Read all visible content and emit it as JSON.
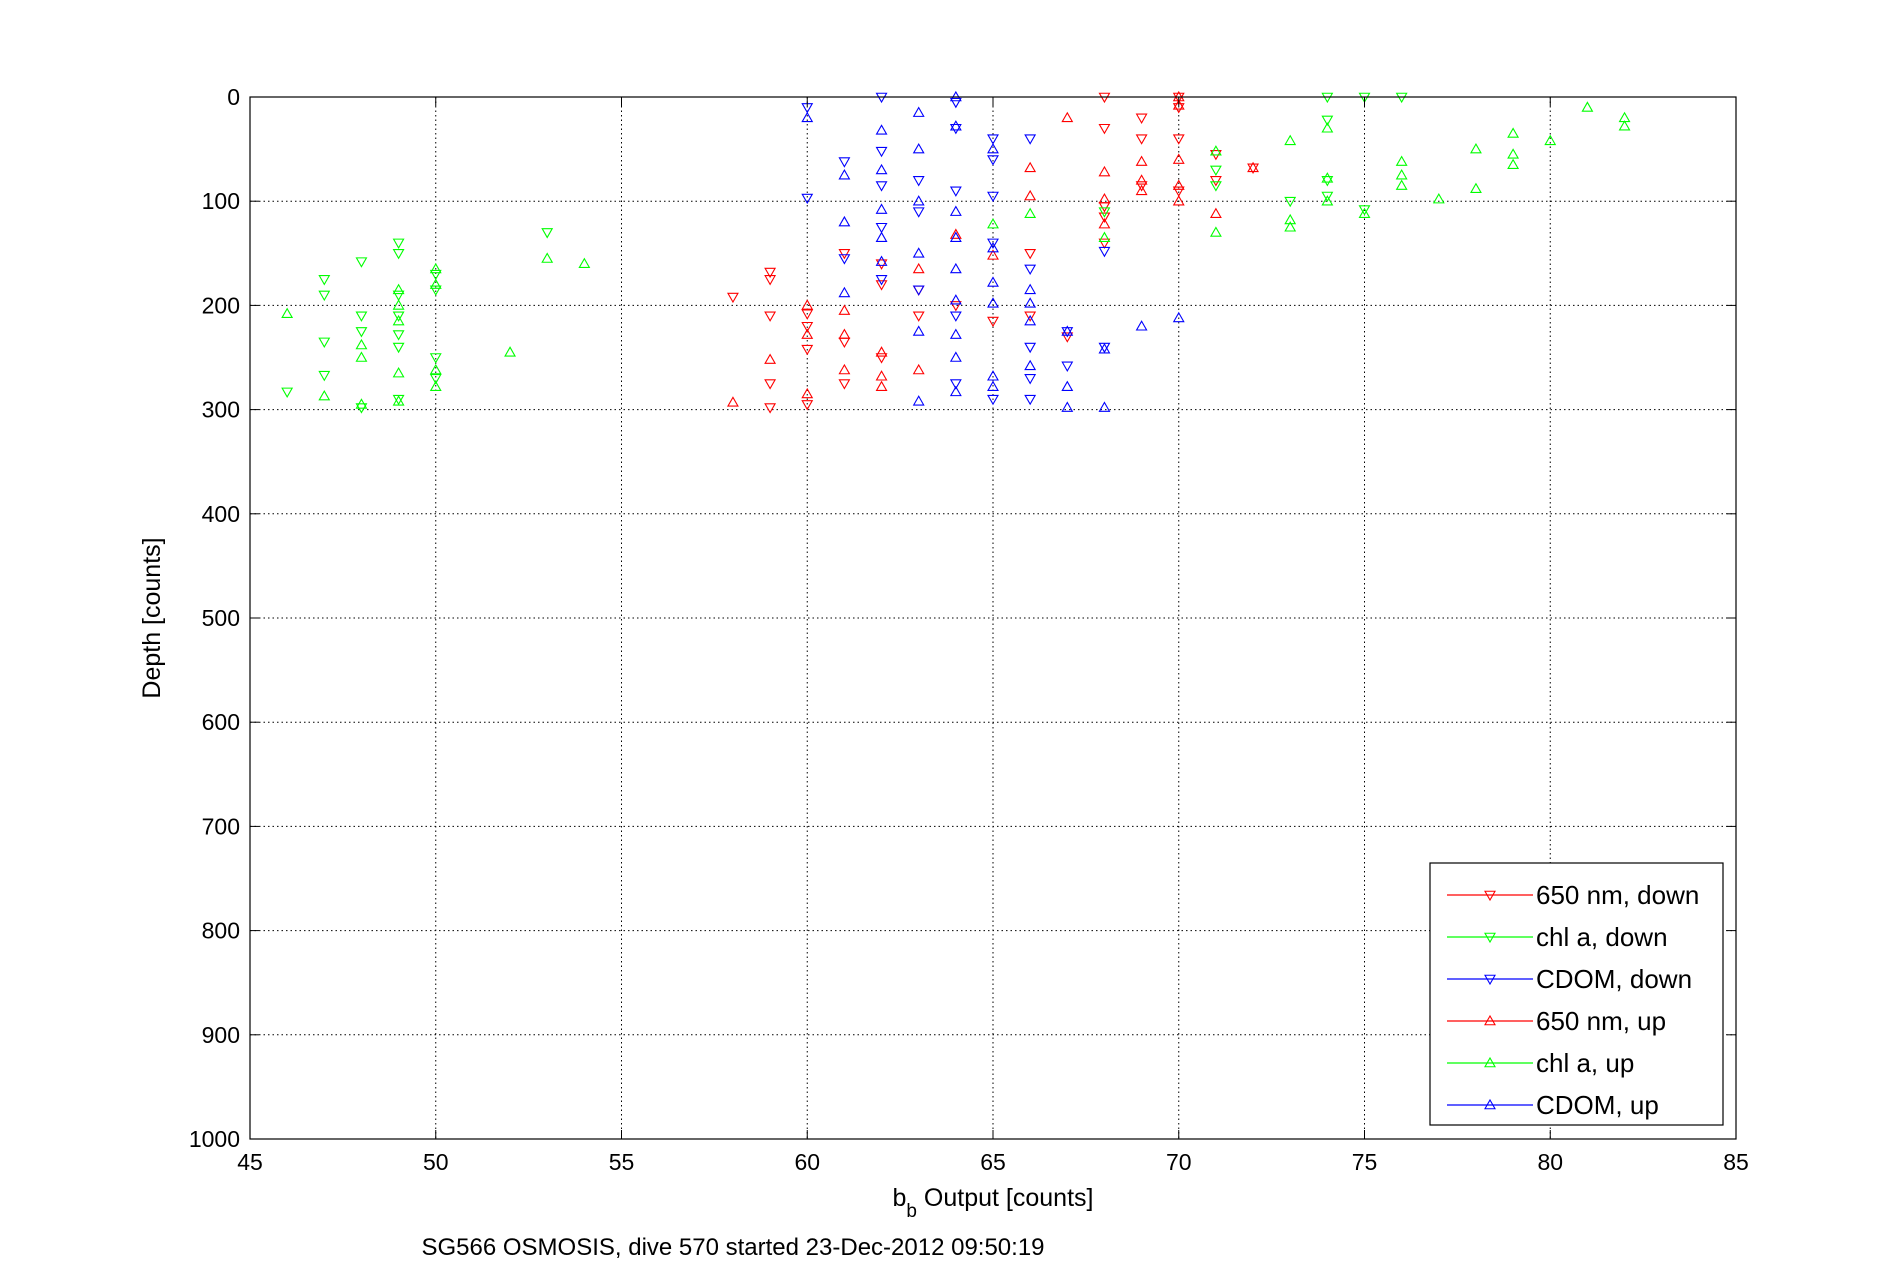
{
  "chart_data": {
    "type": "scatter",
    "xlabel_main": "b",
    "xlabel_sub": "b",
    "xlabel_rest": " Output [counts]",
    "ylabel": "Depth [counts]",
    "caption": "SG566 OSMOSIS, dive 570 started 23-Dec-2012 09:50:19",
    "xlim": [
      45,
      85
    ],
    "ylim": [
      0,
      1000
    ],
    "y_reversed": true,
    "grid": true,
    "legend_position": "bottom-right",
    "x_ticks": [
      "45",
      "50",
      "55",
      "60",
      "65",
      "70",
      "75",
      "80",
      "85"
    ],
    "y_ticks": [
      "0",
      "100",
      "200",
      "300",
      "400",
      "500",
      "600",
      "700",
      "800",
      "900",
      "1000"
    ],
    "colors": {
      "red": "#ff0000",
      "green": "#00ff00",
      "blue": "#0000ff"
    },
    "series": [
      {
        "name": "650 nm, down",
        "color": "#ff0000",
        "marker": "triangle-down",
        "points": [
          [
            58,
            192
          ],
          [
            59,
            168
          ],
          [
            59,
            175
          ],
          [
            59,
            210
          ],
          [
            59,
            275
          ],
          [
            59,
            298
          ],
          [
            60,
            208
          ],
          [
            60,
            220
          ],
          [
            60,
            242
          ],
          [
            60,
            295
          ],
          [
            61,
            150
          ],
          [
            61,
            235
          ],
          [
            61,
            275
          ],
          [
            62,
            160
          ],
          [
            62,
            180
          ],
          [
            62,
            250
          ],
          [
            63,
            185
          ],
          [
            63,
            210
          ],
          [
            64,
            200
          ],
          [
            65,
            215
          ],
          [
            66,
            150
          ],
          [
            66,
            210
          ],
          [
            67,
            230
          ],
          [
            68,
            0
          ],
          [
            68,
            30
          ],
          [
            68,
            105
          ],
          [
            68,
            115
          ],
          [
            68,
            140
          ],
          [
            69,
            20
          ],
          [
            69,
            40
          ],
          [
            69,
            85
          ],
          [
            70,
            0
          ],
          [
            70,
            10
          ],
          [
            70,
            40
          ],
          [
            70,
            90
          ],
          [
            71,
            55
          ],
          [
            71,
            80
          ],
          [
            72,
            68
          ]
        ]
      },
      {
        "name": "chl a, down",
        "color": "#00ff00",
        "marker": "triangle-down",
        "points": [
          [
            46,
            283
          ],
          [
            47,
            175
          ],
          [
            47,
            190
          ],
          [
            47,
            235
          ],
          [
            47,
            267
          ],
          [
            48,
            158
          ],
          [
            48,
            210
          ],
          [
            48,
            225
          ],
          [
            48,
            298
          ],
          [
            49,
            140
          ],
          [
            49,
            150
          ],
          [
            49,
            190
          ],
          [
            49,
            210
          ],
          [
            49,
            228
          ],
          [
            49,
            240
          ],
          [
            49,
            290
          ],
          [
            50,
            170
          ],
          [
            50,
            185
          ],
          [
            50,
            250
          ],
          [
            50,
            270
          ],
          [
            53,
            130
          ],
          [
            68,
            110
          ],
          [
            71,
            70
          ],
          [
            71,
            85
          ],
          [
            73,
            100
          ],
          [
            74,
            0
          ],
          [
            74,
            22
          ],
          [
            74,
            80
          ],
          [
            74,
            95
          ],
          [
            75,
            0
          ],
          [
            75,
            108
          ],
          [
            76,
            0
          ]
        ]
      },
      {
        "name": "CDOM, down",
        "color": "#0000ff",
        "marker": "triangle-down",
        "points": [
          [
            60,
            10
          ],
          [
            60,
            97
          ],
          [
            61,
            62
          ],
          [
            61,
            155
          ],
          [
            62,
            0
          ],
          [
            62,
            52
          ],
          [
            62,
            85
          ],
          [
            62,
            125
          ],
          [
            62,
            175
          ],
          [
            63,
            80
          ],
          [
            63,
            110
          ],
          [
            63,
            185
          ],
          [
            64,
            5
          ],
          [
            64,
            30
          ],
          [
            64,
            90
          ],
          [
            64,
            210
          ],
          [
            64,
            275
          ],
          [
            65,
            40
          ],
          [
            65,
            60
          ],
          [
            65,
            95
          ],
          [
            65,
            140
          ],
          [
            65,
            290
          ],
          [
            66,
            40
          ],
          [
            66,
            165
          ],
          [
            66,
            240
          ],
          [
            66,
            270
          ],
          [
            66,
            290
          ],
          [
            67,
            225
          ],
          [
            67,
            258
          ],
          [
            68,
            148
          ],
          [
            68,
            240
          ]
        ]
      },
      {
        "name": "650 nm, up",
        "color": "#ff0000",
        "marker": "triangle-up",
        "points": [
          [
            58,
            293
          ],
          [
            59,
            252
          ],
          [
            60,
            200
          ],
          [
            60,
            228
          ],
          [
            60,
            285
          ],
          [
            61,
            205
          ],
          [
            61,
            228
          ],
          [
            61,
            262
          ],
          [
            62,
            245
          ],
          [
            62,
            268
          ],
          [
            62,
            278
          ],
          [
            63,
            165
          ],
          [
            63,
            262
          ],
          [
            64,
            132
          ],
          [
            65,
            152
          ],
          [
            66,
            68
          ],
          [
            66,
            95
          ],
          [
            67,
            20
          ],
          [
            68,
            72
          ],
          [
            68,
            98
          ],
          [
            68,
            122
          ],
          [
            69,
            62
          ],
          [
            69,
            80
          ],
          [
            69,
            90
          ],
          [
            70,
            0
          ],
          [
            70,
            8
          ],
          [
            70,
            60
          ],
          [
            70,
            85
          ],
          [
            70,
            100
          ],
          [
            71,
            112
          ],
          [
            72,
            68
          ]
        ]
      },
      {
        "name": "chl a, up",
        "color": "#00ff00",
        "marker": "triangle-up",
        "points": [
          [
            46,
            208
          ],
          [
            47,
            287
          ],
          [
            48,
            295
          ],
          [
            48,
            238
          ],
          [
            48,
            250
          ],
          [
            49,
            185
          ],
          [
            49,
            200
          ],
          [
            49,
            215
          ],
          [
            49,
            265
          ],
          [
            49,
            292
          ],
          [
            50,
            165
          ],
          [
            50,
            180
          ],
          [
            50,
            262
          ],
          [
            50,
            278
          ],
          [
            52,
            245
          ],
          [
            53,
            155
          ],
          [
            54,
            160
          ],
          [
            65,
            122
          ],
          [
            66,
            112
          ],
          [
            68,
            135
          ],
          [
            71,
            52
          ],
          [
            71,
            130
          ],
          [
            73,
            42
          ],
          [
            73,
            118
          ],
          [
            73,
            125
          ],
          [
            74,
            30
          ],
          [
            74,
            78
          ],
          [
            74,
            100
          ],
          [
            75,
            112
          ],
          [
            76,
            62
          ],
          [
            76,
            75
          ],
          [
            76,
            85
          ],
          [
            77,
            98
          ],
          [
            78,
            50
          ],
          [
            78,
            88
          ],
          [
            79,
            35
          ],
          [
            79,
            55
          ],
          [
            79,
            65
          ],
          [
            80,
            42
          ],
          [
            81,
            10
          ],
          [
            82,
            20
          ],
          [
            82,
            28
          ]
        ]
      },
      {
        "name": "CDOM, up",
        "color": "#0000ff",
        "marker": "triangle-up",
        "points": [
          [
            60,
            20
          ],
          [
            61,
            75
          ],
          [
            61,
            120
          ],
          [
            61,
            188
          ],
          [
            62,
            32
          ],
          [
            62,
            70
          ],
          [
            62,
            108
          ],
          [
            62,
            135
          ],
          [
            62,
            158
          ],
          [
            63,
            15
          ],
          [
            63,
            50
          ],
          [
            63,
            100
          ],
          [
            63,
            150
          ],
          [
            63,
            225
          ],
          [
            63,
            292
          ],
          [
            64,
            0
          ],
          [
            64,
            28
          ],
          [
            64,
            110
          ],
          [
            64,
            135
          ],
          [
            64,
            165
          ],
          [
            64,
            195
          ],
          [
            64,
            228
          ],
          [
            64,
            250
          ],
          [
            64,
            283
          ],
          [
            65,
            50
          ],
          [
            65,
            145
          ],
          [
            65,
            178
          ],
          [
            65,
            198
          ],
          [
            65,
            268
          ],
          [
            65,
            278
          ],
          [
            66,
            185
          ],
          [
            66,
            198
          ],
          [
            66,
            215
          ],
          [
            66,
            258
          ],
          [
            67,
            225
          ],
          [
            67,
            278
          ],
          [
            67,
            298
          ],
          [
            68,
            298
          ],
          [
            68,
            242
          ],
          [
            69,
            220
          ],
          [
            70,
            212
          ]
        ]
      }
    ]
  }
}
